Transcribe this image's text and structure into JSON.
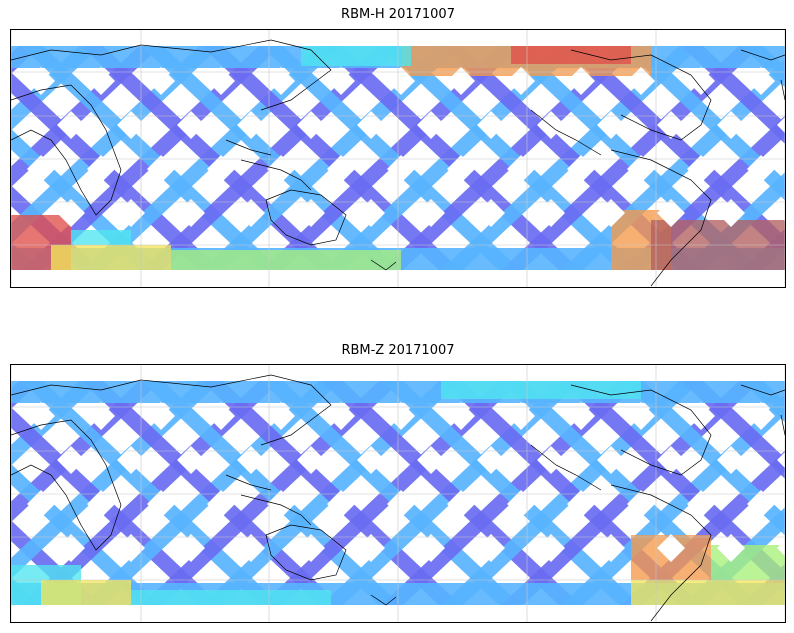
{
  "panels": [
    {
      "title": "RBM-H 20171007",
      "colormap": "jet",
      "high_zones": [
        "south-america-southern-ocean",
        "north-pacific",
        "south-atlantic"
      ]
    },
    {
      "title": "RBM-Z 20171007",
      "colormap": "jet",
      "high_zones": [
        "south-atlantic-moderate",
        "southern-band-moderate"
      ]
    }
  ],
  "colors": {
    "track_low": "#6a6cf2",
    "track_mid": "#58b4ff",
    "cyan": "#4fe6f0",
    "green": "#a8f07a",
    "yellow": "#f2e65a",
    "orange": "#f59a4a",
    "red": "#e0504a",
    "darkred": "#b46060",
    "coast": "#000000",
    "grid": "#c8c8c8"
  }
}
